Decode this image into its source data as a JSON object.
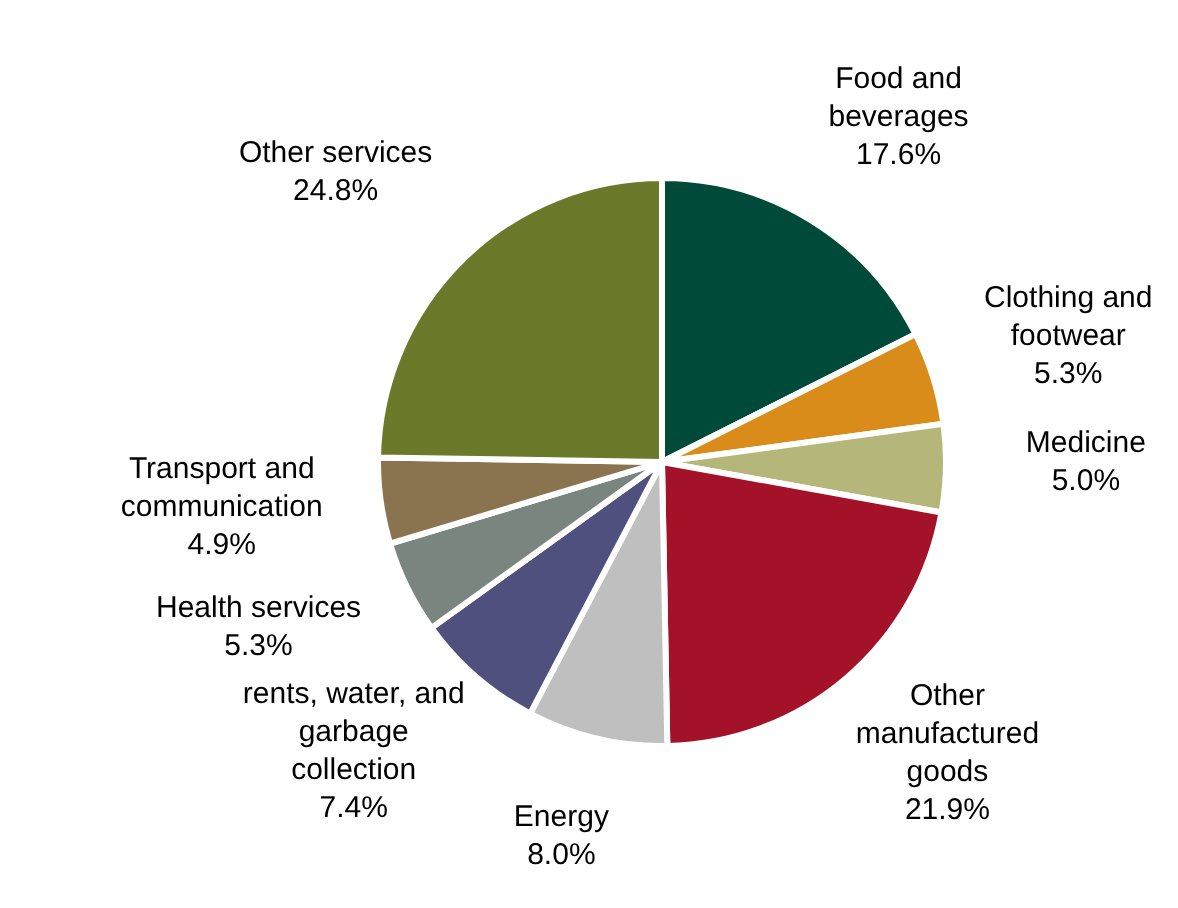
{
  "chart_data": {
    "type": "pie",
    "categories": [
      "Food and beverages",
      "Clothing and footwear",
      "Medicine",
      "Other manufactured goods",
      "Energy",
      "rents, water, and garbage collection",
      "Health services",
      "Transport and communication",
      "Other services"
    ],
    "values": [
      17.6,
      5.3,
      5.0,
      21.9,
      8.0,
      7.4,
      5.3,
      4.9,
      24.8
    ],
    "colors": [
      "#004a3a",
      "#d98c1a",
      "#b5b77a",
      "#a31228",
      "#bfbfbf",
      "#50507f",
      "#7a8580",
      "#8a7450",
      "#6b7a2a"
    ],
    "value_labels": [
      "17.6%",
      "5.3%",
      "5.0%",
      "21.9%",
      "8.0%",
      "7.4%",
      "5.3%",
      "4.9%",
      "24.8%"
    ],
    "legend": false
  }
}
